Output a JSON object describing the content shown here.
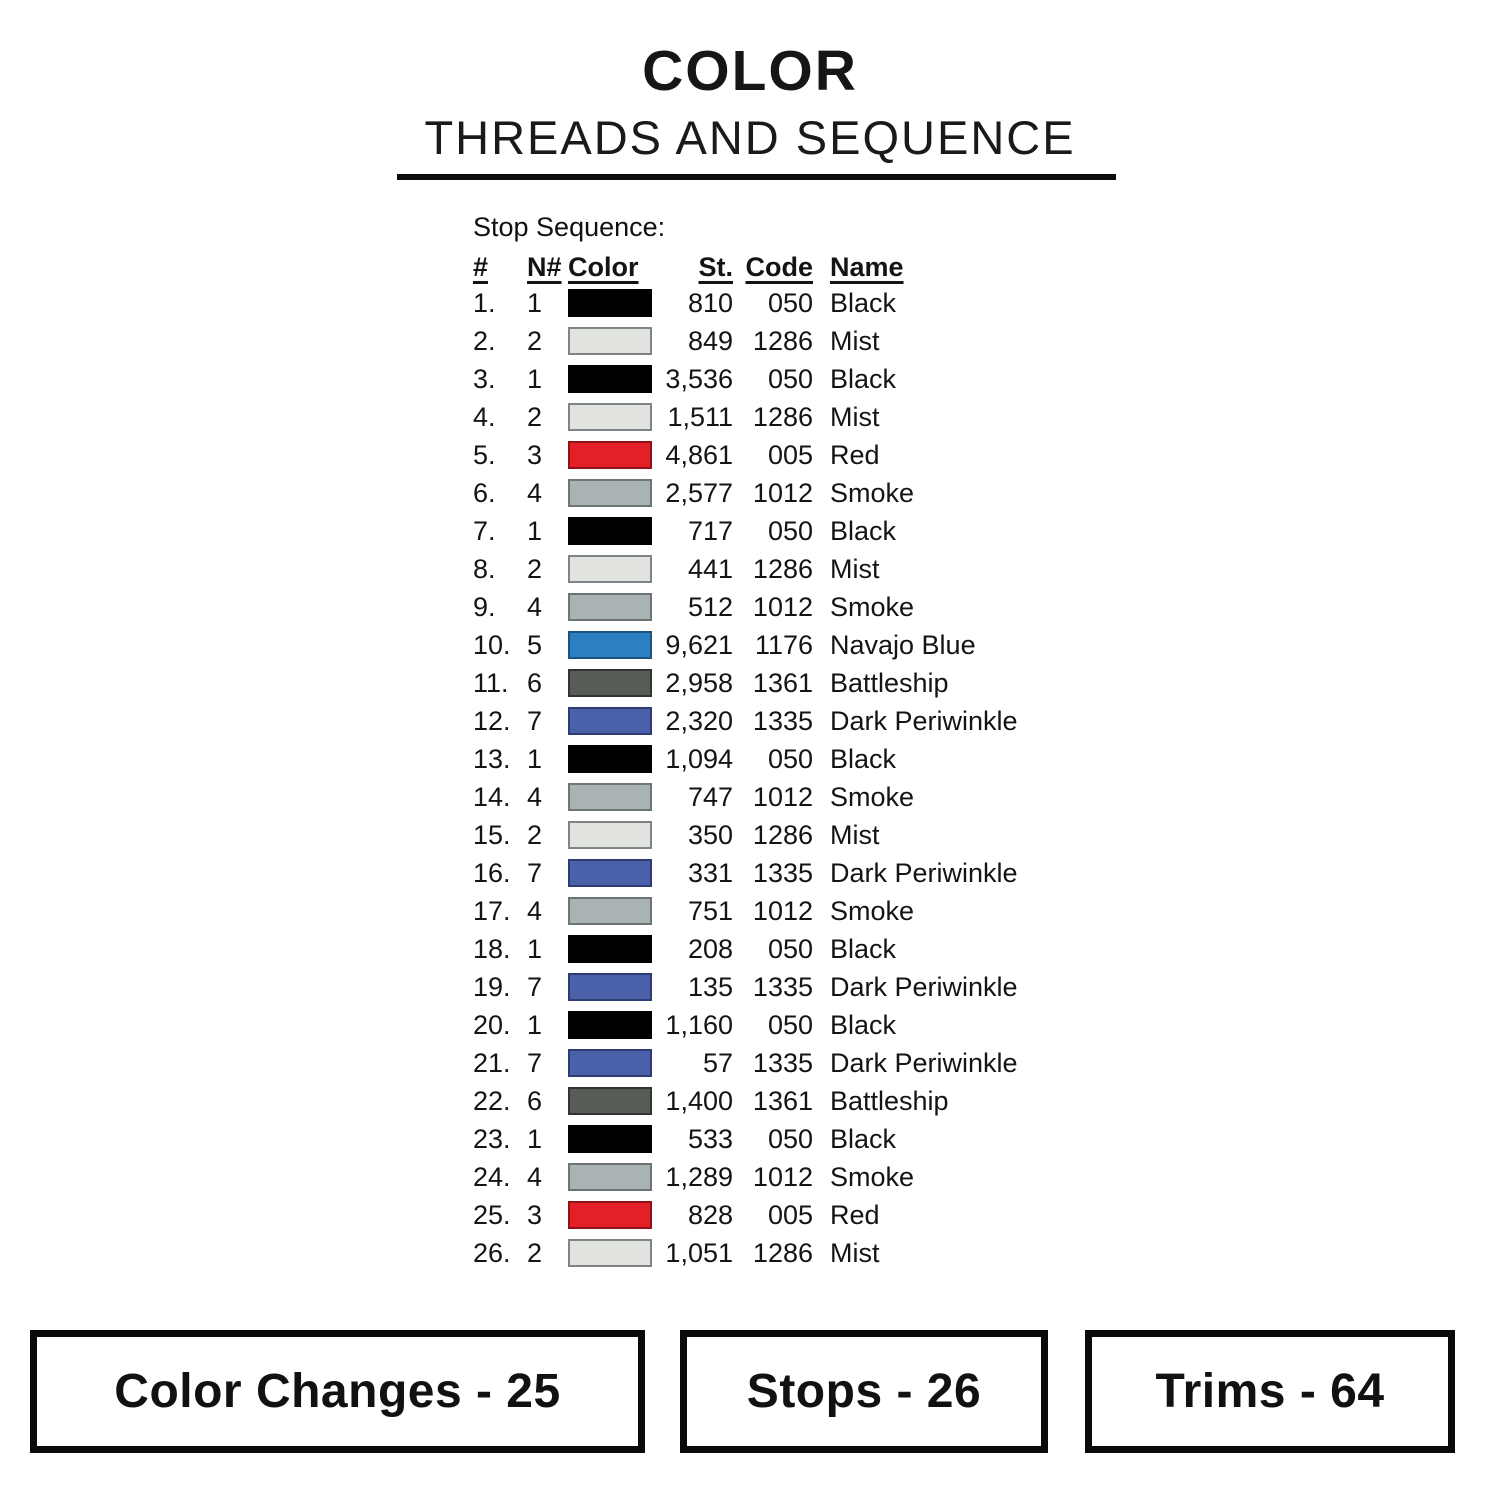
{
  "title": {
    "line1": "COLOR",
    "line2": "THREADS AND SEQUENCE"
  },
  "table": {
    "caption": "Stop Sequence:",
    "headers": [
      "#",
      "N#",
      "Color",
      "St.",
      "Code",
      "Name"
    ],
    "rows": [
      {
        "num": "1.",
        "n": "1",
        "color": "black",
        "st": "810",
        "code": "050",
        "name": "Black"
      },
      {
        "num": "2.",
        "n": "2",
        "color": "mist",
        "st": "849",
        "code": "1286",
        "name": "Mist"
      },
      {
        "num": "3.",
        "n": "1",
        "color": "black",
        "st": "3,536",
        "code": "050",
        "name": "Black"
      },
      {
        "num": "4.",
        "n": "2",
        "color": "mist",
        "st": "1,511",
        "code": "1286",
        "name": "Mist"
      },
      {
        "num": "5.",
        "n": "3",
        "color": "red",
        "st": "4,861",
        "code": "005",
        "name": "Red"
      },
      {
        "num": "6.",
        "n": "4",
        "color": "smoke",
        "st": "2,577",
        "code": "1012",
        "name": "Smoke"
      },
      {
        "num": "7.",
        "n": "1",
        "color": "black",
        "st": "717",
        "code": "050",
        "name": "Black"
      },
      {
        "num": "8.",
        "n": "2",
        "color": "mist",
        "st": "441",
        "code": "1286",
        "name": "Mist"
      },
      {
        "num": "9.",
        "n": "4",
        "color": "smoke",
        "st": "512",
        "code": "1012",
        "name": "Smoke"
      },
      {
        "num": "10.",
        "n": "5",
        "color": "navajo_blue",
        "st": "9,621",
        "code": "1176",
        "name": "Navajo Blue"
      },
      {
        "num": "11.",
        "n": "6",
        "color": "battleship",
        "st": "2,958",
        "code": "1361",
        "name": "Battleship"
      },
      {
        "num": "12.",
        "n": "7",
        "color": "dark_periwinkle",
        "st": "2,320",
        "code": "1335",
        "name": "Dark Periwinkle"
      },
      {
        "num": "13.",
        "n": "1",
        "color": "black",
        "st": "1,094",
        "code": "050",
        "name": "Black"
      },
      {
        "num": "14.",
        "n": "4",
        "color": "smoke",
        "st": "747",
        "code": "1012",
        "name": "Smoke"
      },
      {
        "num": "15.",
        "n": "2",
        "color": "mist",
        "st": "350",
        "code": "1286",
        "name": "Mist"
      },
      {
        "num": "16.",
        "n": "7",
        "color": "dark_periwinkle",
        "st": "331",
        "code": "1335",
        "name": "Dark Periwinkle"
      },
      {
        "num": "17.",
        "n": "4",
        "color": "smoke",
        "st": "751",
        "code": "1012",
        "name": "Smoke"
      },
      {
        "num": "18.",
        "n": "1",
        "color": "black",
        "st": "208",
        "code": "050",
        "name": "Black"
      },
      {
        "num": "19.",
        "n": "7",
        "color": "dark_periwinkle",
        "st": "135",
        "code": "1335",
        "name": "Dark Periwinkle"
      },
      {
        "num": "20.",
        "n": "1",
        "color": "black",
        "st": "1,160",
        "code": "050",
        "name": "Black"
      },
      {
        "num": "21.",
        "n": "7",
        "color": "dark_periwinkle",
        "st": "57",
        "code": "1335",
        "name": "Dark Periwinkle"
      },
      {
        "num": "22.",
        "n": "6",
        "color": "battleship",
        "st": "1,400",
        "code": "1361",
        "name": "Battleship"
      },
      {
        "num": "23.",
        "n": "1",
        "color": "black",
        "st": "533",
        "code": "050",
        "name": "Black"
      },
      {
        "num": "24.",
        "n": "4",
        "color": "smoke",
        "st": "1,289",
        "code": "1012",
        "name": "Smoke"
      },
      {
        "num": "25.",
        "n": "3",
        "color": "red",
        "st": "828",
        "code": "005",
        "name": "Red"
      },
      {
        "num": "26.",
        "n": "2",
        "color": "mist",
        "st": "1,051",
        "code": "1286",
        "name": "Mist"
      }
    ]
  },
  "swatches": {
    "black": {
      "fill": "#000000",
      "border": "#000000"
    },
    "mist": {
      "fill": "#e1e3de",
      "border": "#7f8486"
    },
    "red": {
      "fill": "#e32025",
      "border": "#8f1216"
    },
    "smoke": {
      "fill": "#a9b3b4",
      "border": "#6d7475"
    },
    "navajo_blue": {
      "fill": "#2c80c2",
      "border": "#1c547f"
    },
    "battleship": {
      "fill": "#585c57",
      "border": "#32352f"
    },
    "dark_periwinkle": {
      "fill": "#4a61a9",
      "border": "#2c3b72"
    }
  },
  "footer": {
    "boxes": [
      {
        "label": "Color Changes - 25"
      },
      {
        "label": "Stops - 26"
      },
      {
        "label": "Trims - 64"
      }
    ]
  }
}
